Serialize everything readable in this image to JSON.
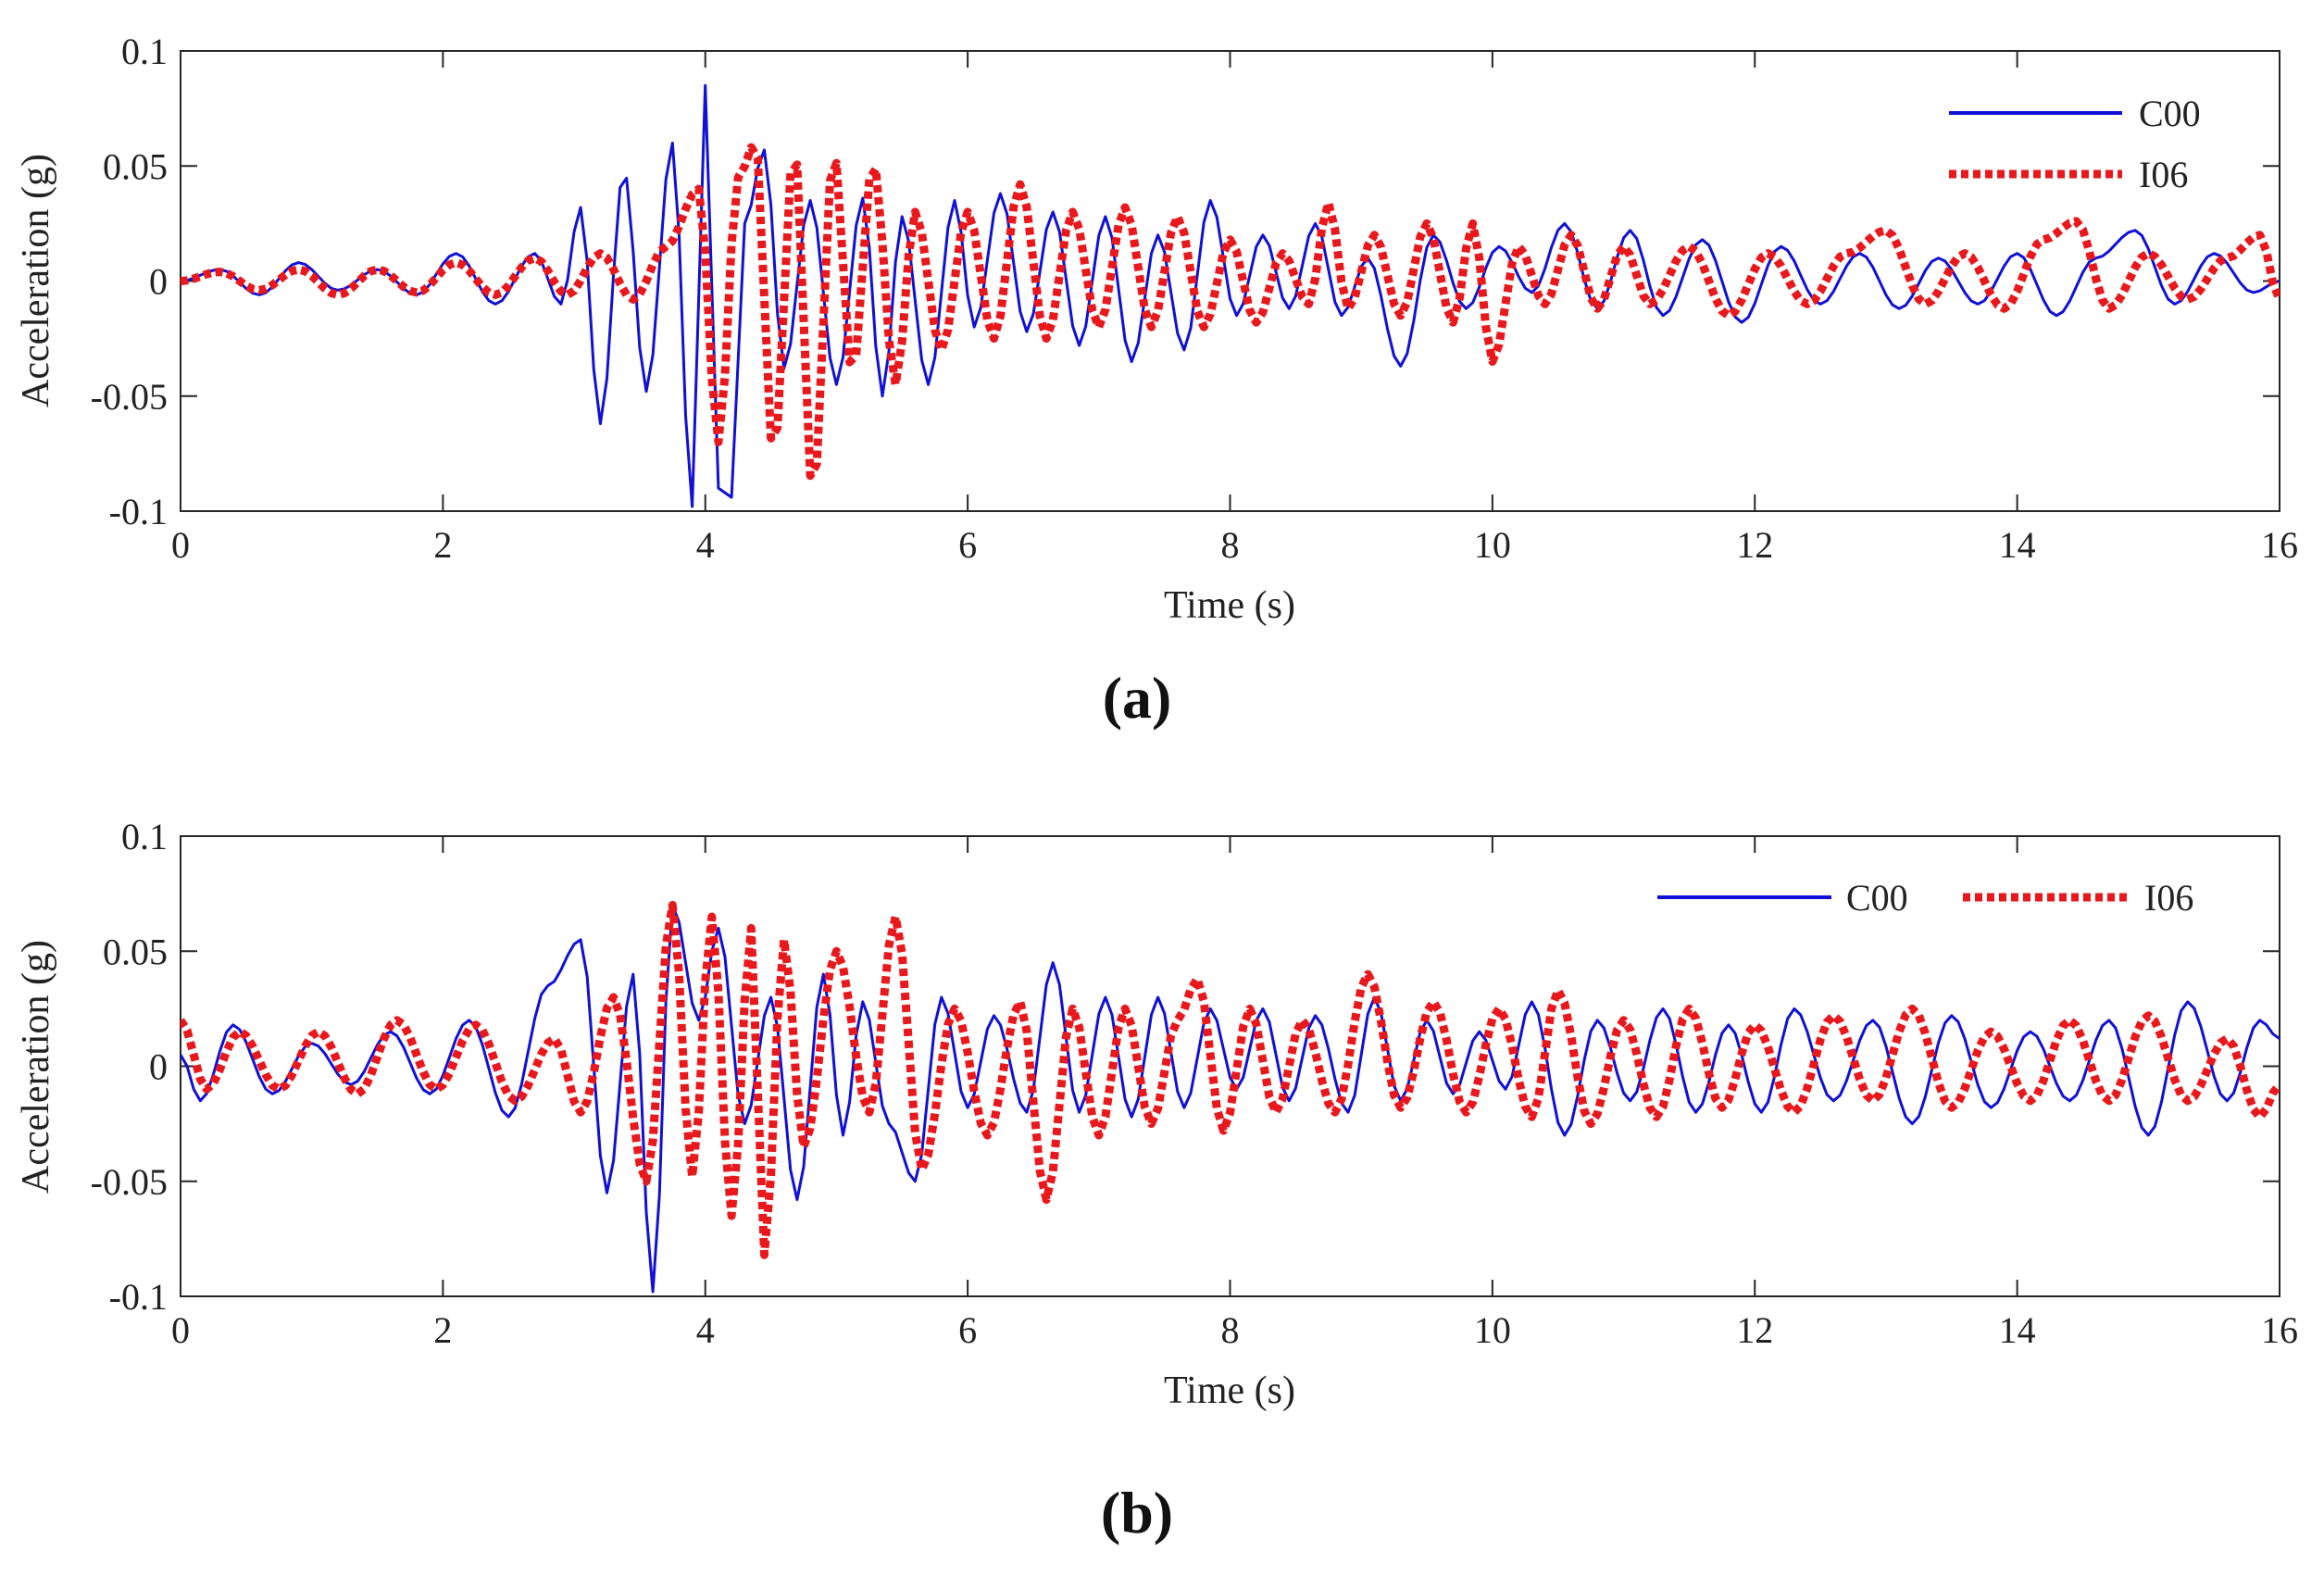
{
  "figure": {
    "sample_step_s": 0.05
  },
  "chart_data": [
    {
      "type": "line",
      "panel_label": "(a)",
      "xlabel": "Time (s)",
      "ylabel": "Acceleration (g)",
      "xlim": [
        0,
        16
      ],
      "ylim": [
        -0.1,
        0.1
      ],
      "xticks": [
        "0",
        "2",
        "4",
        "6",
        "8",
        "10",
        "12",
        "14",
        "16"
      ],
      "yticks": [
        "-0.1",
        "-0.05",
        "0",
        "0.05",
        "0.1"
      ],
      "grid": false,
      "legend": {
        "placement": "top-right",
        "layout": "vertical"
      },
      "series": [
        {
          "name": "C00",
          "color": "#1010d8",
          "dash": "solid",
          "x": [
            0.0,
            0.3,
            0.6,
            0.9,
            1.2,
            1.5,
            1.8,
            2.1,
            2.4,
            2.7,
            2.9,
            3.05,
            3.2,
            3.38,
            3.55,
            3.75,
            3.9,
            4.0,
            4.1,
            4.2,
            4.3,
            4.45,
            4.6,
            4.8,
            5.0,
            5.2,
            5.35,
            5.5,
            5.7,
            5.9,
            6.05,
            6.25,
            6.45,
            6.65,
            6.85,
            7.05,
            7.25,
            7.45,
            7.65,
            7.85,
            8.05,
            8.25,
            8.45,
            8.65,
            8.85,
            9.05,
            9.3,
            9.55,
            9.8,
            10.05,
            10.3,
            10.55,
            10.8,
            11.05,
            11.3,
            11.6,
            11.9,
            12.2,
            12.5,
            12.8,
            13.1,
            13.4,
            13.7,
            14.0,
            14.3,
            14.6,
            14.9,
            15.2,
            15.5,
            15.8,
            16.0
          ],
          "y": [
            0,
            0.005,
            -0.006,
            0.008,
            -0.004,
            0.005,
            -0.006,
            0.012,
            -0.01,
            0.012,
            -0.01,
            0.032,
            -0.062,
            0.048,
            -0.048,
            0.06,
            -0.098,
            0.085,
            -0.09,
            -0.094,
            0.025,
            0.057,
            -0.038,
            0.035,
            -0.045,
            0.036,
            -0.05,
            0.028,
            -0.045,
            0.035,
            -0.02,
            0.038,
            -0.022,
            0.03,
            -0.028,
            0.028,
            -0.035,
            0.02,
            -0.03,
            0.035,
            -0.015,
            0.02,
            -0.012,
            0.025,
            -0.015,
            0.01,
            -0.037,
            0.02,
            -0.012,
            0.015,
            -0.005,
            0.025,
            -0.012,
            0.022,
            -0.015,
            0.018,
            -0.018,
            0.015,
            -0.01,
            0.012,
            -0.012,
            0.01,
            -0.01,
            0.012,
            -0.015,
            0.01,
            0.022,
            -0.01,
            0.012,
            -0.005,
            0.0
          ]
        },
        {
          "name": "I06",
          "color": "#e8181c",
          "dash": "dotted",
          "x": [
            0.0,
            0.3,
            0.6,
            0.9,
            1.2,
            1.5,
            1.8,
            2.1,
            2.4,
            2.7,
            2.95,
            3.2,
            3.45,
            3.7,
            3.95,
            4.1,
            4.25,
            4.38,
            4.52,
            4.68,
            4.82,
            4.98,
            5.12,
            5.28,
            5.45,
            5.6,
            5.8,
            6.0,
            6.2,
            6.4,
            6.6,
            6.8,
            7.0,
            7.2,
            7.4,
            7.6,
            7.8,
            8.0,
            8.2,
            8.4,
            8.6,
            8.75,
            8.9,
            9.1,
            9.3,
            9.5,
            9.7,
            9.85,
            10.0,
            10.2,
            10.4,
            10.6,
            10.8,
            11.0,
            11.2,
            11.5,
            11.8,
            12.1,
            12.4,
            12.7,
            13.0,
            13.3,
            13.6,
            13.9,
            14.2,
            14.45,
            14.7,
            15.0,
            15.3,
            15.6,
            15.85,
            16.0
          ],
          "y": [
            0,
            0.004,
            -0.004,
            0.005,
            -0.006,
            0.005,
            -0.005,
            0.008,
            -0.006,
            0.01,
            -0.006,
            0.012,
            -0.008,
            0.015,
            0.04,
            -0.07,
            0.045,
            0.06,
            -0.075,
            0.058,
            -0.092,
            0.056,
            -0.04,
            0.052,
            -0.045,
            0.03,
            -0.03,
            0.03,
            -0.025,
            0.042,
            -0.025,
            0.03,
            -0.02,
            0.032,
            -0.02,
            0.028,
            -0.02,
            0.018,
            -0.018,
            0.012,
            -0.01,
            0.034,
            -0.012,
            0.02,
            -0.015,
            0.025,
            -0.018,
            0.025,
            -0.035,
            0.015,
            -0.01,
            0.02,
            -0.012,
            0.015,
            -0.01,
            0.015,
            -0.015,
            0.012,
            -0.01,
            0.012,
            0.022,
            -0.01,
            0.012,
            -0.012,
            0.018,
            0.026,
            -0.012,
            0.012,
            -0.008,
            0.01,
            0.02,
            -0.008
          ]
        }
      ]
    },
    {
      "type": "line",
      "panel_label": "(b)",
      "xlabel": "Time (s)",
      "ylabel": "Acceleration (g)",
      "xlim": [
        0,
        16
      ],
      "ylim": [
        -0.1,
        0.1
      ],
      "xticks": [
        "0",
        "2",
        "4",
        "6",
        "8",
        "10",
        "12",
        "14",
        "16"
      ],
      "yticks": [
        "-0.1",
        "-0.05",
        "0",
        "0.05",
        "0.1"
      ],
      "grid": false,
      "legend": {
        "placement": "top-right",
        "layout": "horizontal"
      },
      "series": [
        {
          "name": "C00",
          "color": "#1010d8",
          "dash": "solid",
          "x": [
            0.0,
            0.15,
            0.4,
            0.7,
            1.0,
            1.3,
            1.6,
            1.9,
            2.2,
            2.5,
            2.8,
            3.05,
            3.25,
            3.45,
            3.6,
            3.75,
            3.95,
            4.1,
            4.3,
            4.5,
            4.7,
            4.9,
            5.05,
            5.2,
            5.4,
            5.6,
            5.8,
            6.0,
            6.2,
            6.45,
            6.65,
            6.85,
            7.05,
            7.25,
            7.45,
            7.65,
            7.85,
            8.05,
            8.25,
            8.45,
            8.65,
            8.9,
            9.1,
            9.3,
            9.5,
            9.7,
            9.9,
            10.1,
            10.3,
            10.55,
            10.8,
            11.05,
            11.3,
            11.55,
            11.8,
            12.05,
            12.3,
            12.6,
            12.9,
            13.2,
            13.5,
            13.8,
            14.1,
            14.4,
            14.7,
            15.0,
            15.3,
            15.6,
            15.85,
            16.0
          ],
          "y": [
            0.005,
            -0.015,
            0.018,
            -0.012,
            0.01,
            -0.008,
            0.015,
            -0.012,
            0.02,
            -0.022,
            0.035,
            0.055,
            -0.055,
            0.04,
            -0.098,
            0.07,
            0.02,
            0.06,
            -0.025,
            0.03,
            -0.058,
            0.04,
            -0.03,
            0.028,
            -0.025,
            -0.05,
            0.03,
            -0.018,
            0.022,
            -0.02,
            0.045,
            -0.02,
            0.03,
            -0.022,
            0.03,
            -0.018,
            0.025,
            -0.01,
            0.025,
            -0.015,
            0.022,
            -0.02,
            0.03,
            -0.015,
            0.02,
            -0.012,
            0.015,
            -0.01,
            0.028,
            -0.03,
            0.02,
            -0.015,
            0.025,
            -0.02,
            0.018,
            -0.02,
            0.025,
            -0.015,
            0.02,
            -0.025,
            0.022,
            -0.018,
            0.015,
            -0.015,
            0.02,
            -0.03,
            0.028,
            -0.015,
            0.02,
            0.012
          ]
        },
        {
          "name": "I06",
          "color": "#e8181c",
          "dash": "dotted",
          "x": [
            0.0,
            0.2,
            0.45,
            0.75,
            1.05,
            1.35,
            1.65,
            1.95,
            2.25,
            2.55,
            2.85,
            3.05,
            3.3,
            3.55,
            3.75,
            3.9,
            4.05,
            4.2,
            4.35,
            4.45,
            4.6,
            4.75,
            5.0,
            5.25,
            5.45,
            5.65,
            5.9,
            6.15,
            6.4,
            6.6,
            6.8,
            7.0,
            7.2,
            7.4,
            7.6,
            7.75,
            7.95,
            8.15,
            8.35,
            8.55,
            8.8,
            9.05,
            9.3,
            9.55,
            9.8,
            10.05,
            10.3,
            10.5,
            10.75,
            11.0,
            11.25,
            11.5,
            11.75,
            12.0,
            12.3,
            12.6,
            12.9,
            13.2,
            13.5,
            13.8,
            14.1,
            14.4,
            14.7,
            15.0,
            15.3,
            15.6,
            15.85,
            16.0
          ],
          "y": [
            0.02,
            -0.01,
            0.015,
            -0.01,
            0.015,
            -0.012,
            0.02,
            -0.01,
            0.018,
            -0.015,
            0.012,
            -0.02,
            0.03,
            -0.05,
            0.07,
            -0.048,
            0.065,
            -0.065,
            0.06,
            -0.082,
            0.055,
            -0.035,
            0.05,
            -0.02,
            0.065,
            -0.045,
            0.025,
            -0.03,
            0.028,
            -0.058,
            0.025,
            -0.03,
            0.025,
            -0.025,
            0.02,
            0.038,
            -0.028,
            0.025,
            -0.02,
            0.02,
            -0.02,
            0.04,
            -0.018,
            0.028,
            -0.02,
            0.025,
            -0.022,
            0.033,
            -0.025,
            0.02,
            -0.022,
            0.025,
            -0.018,
            0.018,
            -0.02,
            0.022,
            -0.015,
            0.025,
            -0.018,
            0.015,
            -0.015,
            0.02,
            -0.015,
            0.022,
            -0.015,
            0.012,
            -0.022,
            -0.008
          ]
        }
      ]
    }
  ]
}
